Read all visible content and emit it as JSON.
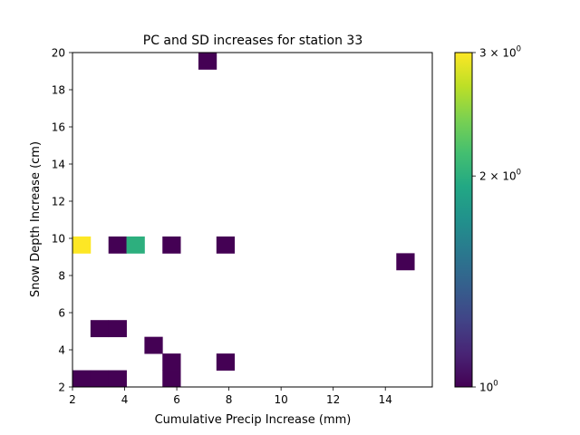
{
  "chart_data": {
    "type": "heatmap",
    "title": "PC and SD increases for station 33",
    "xlabel": "Cumulative Precip Increase (mm)",
    "ylabel": "Snow Depth Increase (cm)",
    "xlim": [
      2,
      15.8
    ],
    "ylim": [
      2,
      20
    ],
    "bin_width": [
      0.69,
      0.9
    ],
    "x_ticks": [
      2,
      4,
      6,
      8,
      10,
      12,
      14
    ],
    "x_tick_labels": [
      "2",
      "4",
      "6",
      "8",
      "10",
      "12",
      "14"
    ],
    "y_ticks": [
      2,
      4,
      6,
      8,
      10,
      12,
      14,
      16,
      18,
      20
    ],
    "y_tick_labels": [
      "2",
      "4",
      "6",
      "8",
      "10",
      "12",
      "14",
      "16",
      "18",
      "20"
    ],
    "colorbar": {
      "scale": "log",
      "range": [
        1,
        3
      ],
      "colormap": "viridis",
      "ticks": [
        1,
        2,
        3
      ],
      "tick_labels": [
        {
          "base": "10",
          "exp": "0",
          "coef": ""
        },
        {
          "base": "10",
          "exp": "0",
          "coef": "2 × "
        },
        {
          "base": "10",
          "exp": "0",
          "coef": "3 × "
        }
      ]
    },
    "cells": [
      {
        "x": 2.0,
        "y": 2.0,
        "count": 1
      },
      {
        "x": 2.69,
        "y": 2.0,
        "count": 1
      },
      {
        "x": 3.38,
        "y": 2.0,
        "count": 1
      },
      {
        "x": 5.45,
        "y": 2.0,
        "count": 1
      },
      {
        "x": 5.45,
        "y": 2.9,
        "count": 1
      },
      {
        "x": 7.52,
        "y": 2.9,
        "count": 1
      },
      {
        "x": 4.76,
        "y": 3.8,
        "count": 1
      },
      {
        "x": 2.69,
        "y": 4.7,
        "count": 1
      },
      {
        "x": 3.38,
        "y": 4.7,
        "count": 1
      },
      {
        "x": 14.42,
        "y": 8.3,
        "count": 1
      },
      {
        "x": 2.0,
        "y": 9.2,
        "count": 3
      },
      {
        "x": 3.38,
        "y": 9.2,
        "count": 1
      },
      {
        "x": 4.07,
        "y": 9.2,
        "count": 2
      },
      {
        "x": 5.45,
        "y": 9.2,
        "count": 1
      },
      {
        "x": 7.52,
        "y": 9.2,
        "count": 1
      },
      {
        "x": 6.83,
        "y": 19.1,
        "count": 1
      }
    ]
  }
}
